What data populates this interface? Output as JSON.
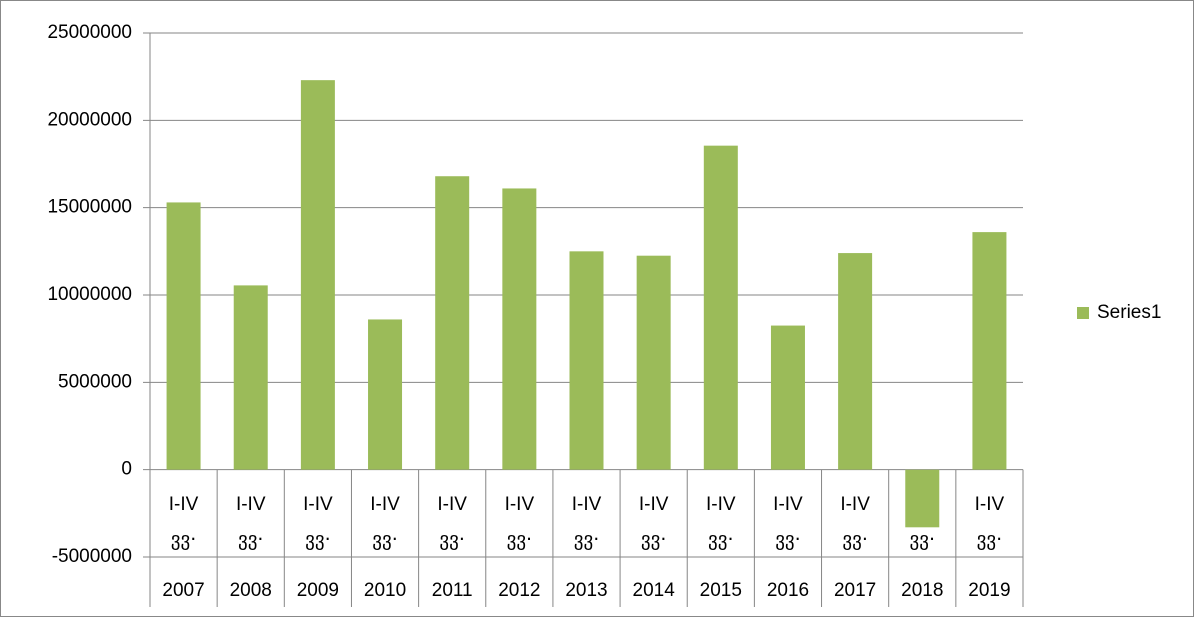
{
  "chart_data": {
    "type": "bar",
    "categories": [
      "2007",
      "2008",
      "2009",
      "2010",
      "2011",
      "2012",
      "2013",
      "2014",
      "2015",
      "2016",
      "2017",
      "2018",
      "2019"
    ],
    "quarter_labels": [
      "I-IV",
      "I-IV",
      "I-IV",
      "I-IV",
      "I-IV",
      "I-IV",
      "I-IV",
      "I-IV",
      "I-IV",
      "I-IV",
      "I-IV",
      "I-IV",
      "I-IV"
    ],
    "unit_labels": [
      "ვვ·",
      "ვვ·",
      "ვვ·",
      "ვვ·",
      "ვვ·",
      "ვვ·",
      "ვვ·",
      "ვვ·",
      "ვვ·",
      "ვვ·",
      "ვვ·",
      "ვვ·",
      "ვვ·"
    ],
    "series": [
      {
        "name": "Series1",
        "color": "#9bbb59",
        "values": [
          15300000,
          10550000,
          22300000,
          8600000,
          16800000,
          16100000,
          12500000,
          12250000,
          18550000,
          8250000,
          12400000,
          -3300000,
          13600000
        ]
      }
    ],
    "ylim": [
      -5000000,
      25000000
    ],
    "yticks": [
      -5000000,
      0,
      5000000,
      10000000,
      15000000,
      20000000,
      25000000
    ],
    "grid": true,
    "legend": "right"
  }
}
